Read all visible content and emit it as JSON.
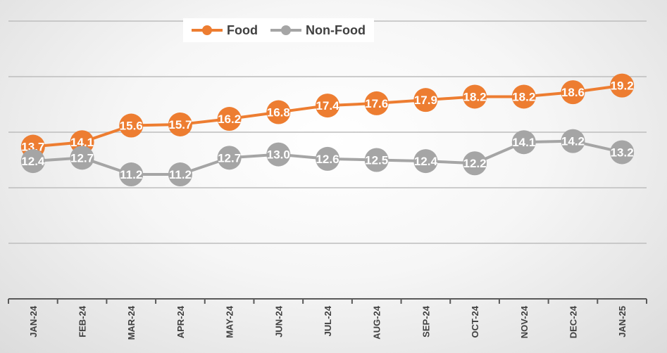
{
  "chart_data": {
    "type": "line",
    "categories": [
      "JAN-24",
      "FEB-24",
      "MAR-24",
      "APR-24",
      "MAY-24",
      "JUN-24",
      "JUL-24",
      "AUG-24",
      "SEP-24",
      "OCT-24",
      "NOV-24",
      "DEC-24",
      "JAN-25"
    ],
    "series": [
      {
        "name": "Food",
        "color": "#ED7D31",
        "values": [
          13.7,
          14.1,
          15.6,
          15.7,
          16.2,
          16.8,
          17.4,
          17.6,
          17.9,
          18.2,
          18.2,
          18.6,
          19.2
        ],
        "labels": [
          "13.7",
          "14.1",
          "15.6",
          "15.7",
          "16.2",
          "16.8",
          "17.4",
          "17.6",
          "17.9",
          "18.2",
          "18.2",
          "18.6",
          "19.2"
        ]
      },
      {
        "name": "Non-Food",
        "color": "#A5A5A5",
        "values": [
          12.4,
          12.7,
          11.2,
          11.2,
          12.7,
          13.0,
          12.6,
          12.5,
          12.4,
          12.2,
          14.1,
          14.2,
          13.2
        ],
        "labels": [
          "12.4",
          "12.7",
          "11.2",
          "11.2",
          "12.7",
          "13.0",
          "12.6",
          "12.5",
          "12.4",
          "12.2",
          "14.1",
          "14.2",
          "13.2"
        ]
      }
    ],
    "ylim": [
      0,
      25
    ],
    "gridlines": [
      5,
      10,
      15,
      20,
      25
    ],
    "grid": true,
    "legend_position": "top-left",
    "title": "",
    "xlabel": "",
    "ylabel": ""
  }
}
